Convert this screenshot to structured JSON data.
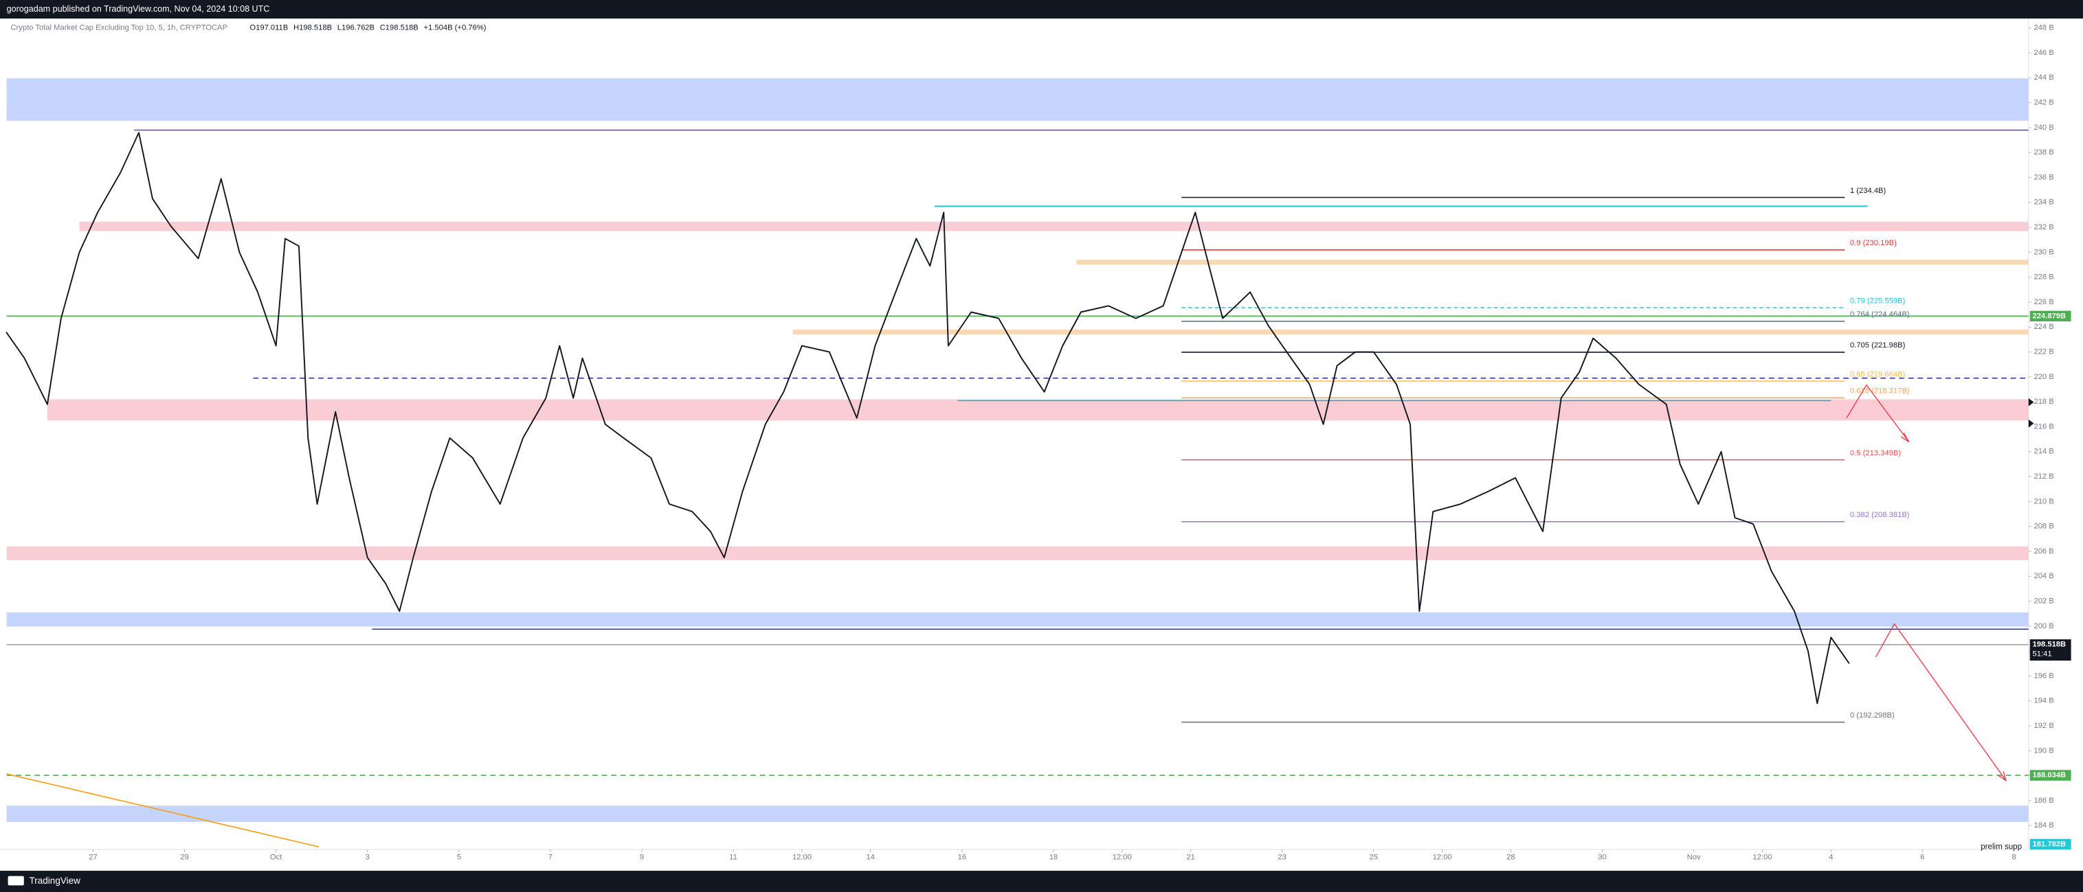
{
  "header": {
    "publisher": "gorogadam published on TradingView.com, Nov 04, 2024 10:08 UTC"
  },
  "footer": "TradingView",
  "chart_data": {
    "type": "line",
    "title": "Crypto Total Market Cap Excluding Top 10, 5, 1h, CRYPTOCAP",
    "legend_values": [
      "O197.011B",
      "H198.518B",
      "L196.762B",
      "C198.518B",
      "+1.504B (+0.76%)"
    ],
    "x": [
      25.1,
      25.5,
      26.0,
      26.3,
      26.7,
      27.1,
      27.6,
      28.0,
      28.3,
      28.7,
      29.3,
      29.8,
      30.2,
      30.6,
      31.0,
      31.2,
      31.5,
      31.7,
      31.9,
      32.3,
      32.6,
      33.0,
      33.4,
      33.7,
      34.0,
      34.4,
      34.8,
      35.3,
      35.9,
      36.4,
      36.9,
      37.2,
      37.5,
      37.7,
      38.2,
      38.6,
      39.2,
      39.6,
      40.1,
      40.5,
      40.8,
      41.2,
      41.7,
      42.1,
      42.5,
      43.1,
      43.7,
      44.1,
      44.6,
      45.0,
      45.3,
      45.6,
      45.7,
      46.2,
      46.8,
      47.3,
      47.8,
      48.2,
      48.6,
      49.2,
      49.8,
      50.4,
      50.8,
      51.1,
      51.4,
      51.7,
      52.3,
      52.7,
      53.1,
      53.6,
      53.9,
      54.2,
      54.6,
      55.0,
      55.5,
      55.8,
      56.0,
      56.3,
      56.9,
      57.5,
      58.1,
      58.7,
      59.1,
      59.5,
      59.8,
      60.3,
      60.8,
      61.4,
      61.7,
      62.1,
      62.6,
      62.9,
      63.3,
      63.7,
      64.2,
      64.5,
      64.7,
      65.0,
      65.4
    ],
    "series": [
      {
        "color": "#131722",
        "values": [
          223.6,
          221.5,
          217.8,
          224.7,
          230,
          233.2,
          236.4,
          239.6,
          234.3,
          232.1,
          229.5,
          235.9,
          230,
          226.8,
          222.5,
          231.1,
          230.5,
          215.1,
          209.8,
          217.2,
          211.9,
          205.5,
          203.4,
          201.2,
          205.5,
          210.8,
          215.1,
          213.5,
          209.8,
          215.1,
          218.3,
          222.5,
          218.3,
          221.5,
          216.2,
          215.1,
          213.5,
          209.8,
          209.2,
          207.6,
          205.5,
          210.8,
          216.2,
          218.8,
          222.5,
          222,
          216.7,
          222.5,
          227.3,
          231.1,
          228.9,
          233.2,
          222.5,
          225.2,
          224.7,
          221.5,
          218.8,
          222.5,
          225.2,
          225.7,
          224.7,
          225.7,
          230,
          233.2,
          228.9,
          224.7,
          226.8,
          224.1,
          222,
          219.4,
          216.2,
          220.9,
          222,
          222,
          219.4,
          216.2,
          201.2,
          209.2,
          209.8,
          210.8,
          211.9,
          207.6,
          218.3,
          220.4,
          223.1,
          221.5,
          219.4,
          217.8,
          213,
          209.8,
          214,
          208.7,
          208.2,
          204.4,
          201.2,
          198,
          193.8,
          199.1,
          197
        ]
      }
    ],
    "xlim": [
      25.11,
      69.32
    ],
    "xticks": [
      27,
      29,
      {
        "value": 31,
        "label": "Oct"
      },
      {
        "value": 33,
        "label": "3"
      },
      {
        "value": 35,
        "label": "5"
      },
      {
        "value": 37,
        "label": "7"
      },
      {
        "value": 39,
        "label": "9"
      },
      {
        "value": 41,
        "label": "11"
      },
      {
        "value": 42.5,
        "label": "12:00"
      },
      {
        "value": 44,
        "label": "14"
      },
      {
        "value": 46,
        "label": "16"
      },
      {
        "value": 48,
        "label": "18"
      },
      {
        "value": 49.5,
        "label": "12:00"
      },
      {
        "value": 51,
        "label": "21"
      },
      {
        "value": 53,
        "label": "23"
      },
      {
        "value": 55,
        "label": "25"
      },
      {
        "value": 56.5,
        "label": "12:00"
      },
      {
        "value": 58,
        "label": "28"
      },
      {
        "value": 60,
        "label": "30"
      },
      {
        "value": 62,
        "label": "Nov"
      },
      {
        "value": 63.5,
        "label": "12:00"
      },
      {
        "value": 65,
        "label": "4"
      },
      {
        "value": 67,
        "label": "6"
      },
      {
        "value": 69,
        "label": "8"
      }
    ],
    "ylim": [
      182.08,
      248.75
    ],
    "yticks": [
      {
        "value": 184,
        "label": "184 B"
      },
      {
        "value": 186,
        "label": "186 B"
      },
      {
        "value": 188,
        "label": "188 B"
      },
      {
        "value": 190,
        "label": "190 B"
      },
      {
        "value": 192,
        "label": "192 B"
      },
      {
        "value": 194,
        "label": "194 B"
      },
      {
        "value": 196,
        "label": "196 B"
      },
      {
        "value": 198,
        "label": "198 B"
      },
      {
        "value": 200,
        "label": "200 B"
      },
      {
        "value": 202,
        "label": "202 B"
      },
      {
        "value": 204,
        "label": "204 B"
      },
      {
        "value": 206,
        "label": "206 B"
      },
      {
        "value": 208,
        "label": "208 B"
      },
      {
        "value": 210,
        "label": "210 B"
      },
      {
        "value": 212,
        "label": "212 B"
      },
      {
        "value": 214,
        "label": "214 B"
      },
      {
        "value": 216,
        "label": "216 B"
      },
      {
        "value": 218,
        "label": "218 B"
      },
      {
        "value": 220,
        "label": "220 B"
      },
      {
        "value": 222,
        "label": "222 B"
      },
      {
        "value": 224,
        "label": "224 B"
      },
      {
        "value": 226,
        "label": "226 B"
      },
      {
        "value": 228,
        "label": "228 B"
      },
      {
        "value": 230,
        "label": "230 B"
      },
      {
        "value": 232,
        "label": "232 B"
      },
      {
        "value": 234,
        "label": "234 B"
      },
      {
        "value": 236,
        "label": "236 B"
      },
      {
        "value": 238,
        "label": "238 B"
      },
      {
        "value": 240,
        "label": "240 B"
      },
      {
        "value": 242,
        "label": "242 B"
      },
      {
        "value": 244,
        "label": "244 B"
      },
      {
        "value": 246,
        "label": "246 B"
      },
      {
        "value": 248,
        "label": "248 B"
      }
    ],
    "grid": false,
    "zones": [
      {
        "from": 240.55,
        "to": 243.95,
        "color": "#c5d4fb"
      },
      {
        "from": 231.7,
        "to": 232.45,
        "color": "#f9cdd3",
        "x0": 26.7
      },
      {
        "from": 216.5,
        "to": 218.2,
        "color": "#f9cdd3",
        "x0": 26.0
      },
      {
        "from": 205.3,
        "to": 206.4,
        "color": "#f9cdd3"
      },
      {
        "from": 199.97,
        "to": 201.1,
        "color": "#c5d4fb"
      },
      {
        "from": 184.3,
        "to": 185.6,
        "color": "#c5d4fb"
      },
      {
        "from": 229.0,
        "to": 229.4,
        "color": "#f9d9b4",
        "x0": 48.5
      },
      {
        "from": 223.4,
        "to": 223.8,
        "color": "#f9d9b4",
        "x0": 42.3
      }
    ],
    "hlines": [
      {
        "value": 239.8,
        "color": "#673ab7",
        "x0": 27.9
      },
      {
        "value": 224.879,
        "color": "#4caf50"
      },
      {
        "value": 219.9,
        "color": "#283593",
        "dash": true,
        "x0": 30.5
      },
      {
        "value": 199.76,
        "color": "#283593",
        "x0": 33.1
      },
      {
        "value": 198.518,
        "color": "#9e9e9e"
      },
      {
        "value": 188.034,
        "color": "#4caf50",
        "dash": true
      },
      {
        "value": 233.7,
        "color": "#00bcd4",
        "x0": 45.4,
        "x1": 65.8
      },
      {
        "value": 218.1,
        "color": "#00bcd4",
        "x0": 45.9,
        "x1": 65.0
      }
    ],
    "fib": {
      "x0": 50.8,
      "x1": 65.3,
      "levels": [
        {
          "value": 234.4,
          "label": "1 (234.4B)",
          "color": "#131722"
        },
        {
          "value": 230.19,
          "label": "0.9 (230.19B)",
          "color": "#e53935"
        },
        {
          "value": 225.559,
          "label": "0.79 (225.559B)",
          "color": "#26c6da",
          "dash": true
        },
        {
          "value": 224.464,
          "label": "0.764 (224.464B)",
          "color": "#546e7a"
        },
        {
          "value": 221.98,
          "label": "0.705 (221.98B)",
          "color": "#131722"
        },
        {
          "value": 219.664,
          "label": "0.65 (219.664B)",
          "color": "#ffb74d"
        },
        {
          "value": 218.317,
          "label": "0.618 (218.317B)",
          "color": "#f4a460"
        },
        {
          "value": 213.349,
          "label": "0.5 (213.349B)",
          "color": "#ef5350"
        },
        {
          "value": 208.381,
          "label": "0.382 (208.381B)",
          "color": "#9575cd"
        },
        {
          "value": 192.298,
          "label": "0 (192.298B)",
          "color": "#757575"
        }
      ]
    },
    "price_labels": [
      {
        "value": 224.879,
        "label": "224.879B",
        "color": "#4caf50"
      },
      {
        "value": 198.518,
        "label": "198.518B",
        "countdown": "51:41",
        "color": "#131722"
      },
      {
        "value": 188.034,
        "label": "188.034B",
        "color": "#4caf50"
      },
      {
        "value": 181.782,
        "label": "181.782B",
        "color": "#26c6da"
      }
    ],
    "annotation": "prelim supp"
  }
}
